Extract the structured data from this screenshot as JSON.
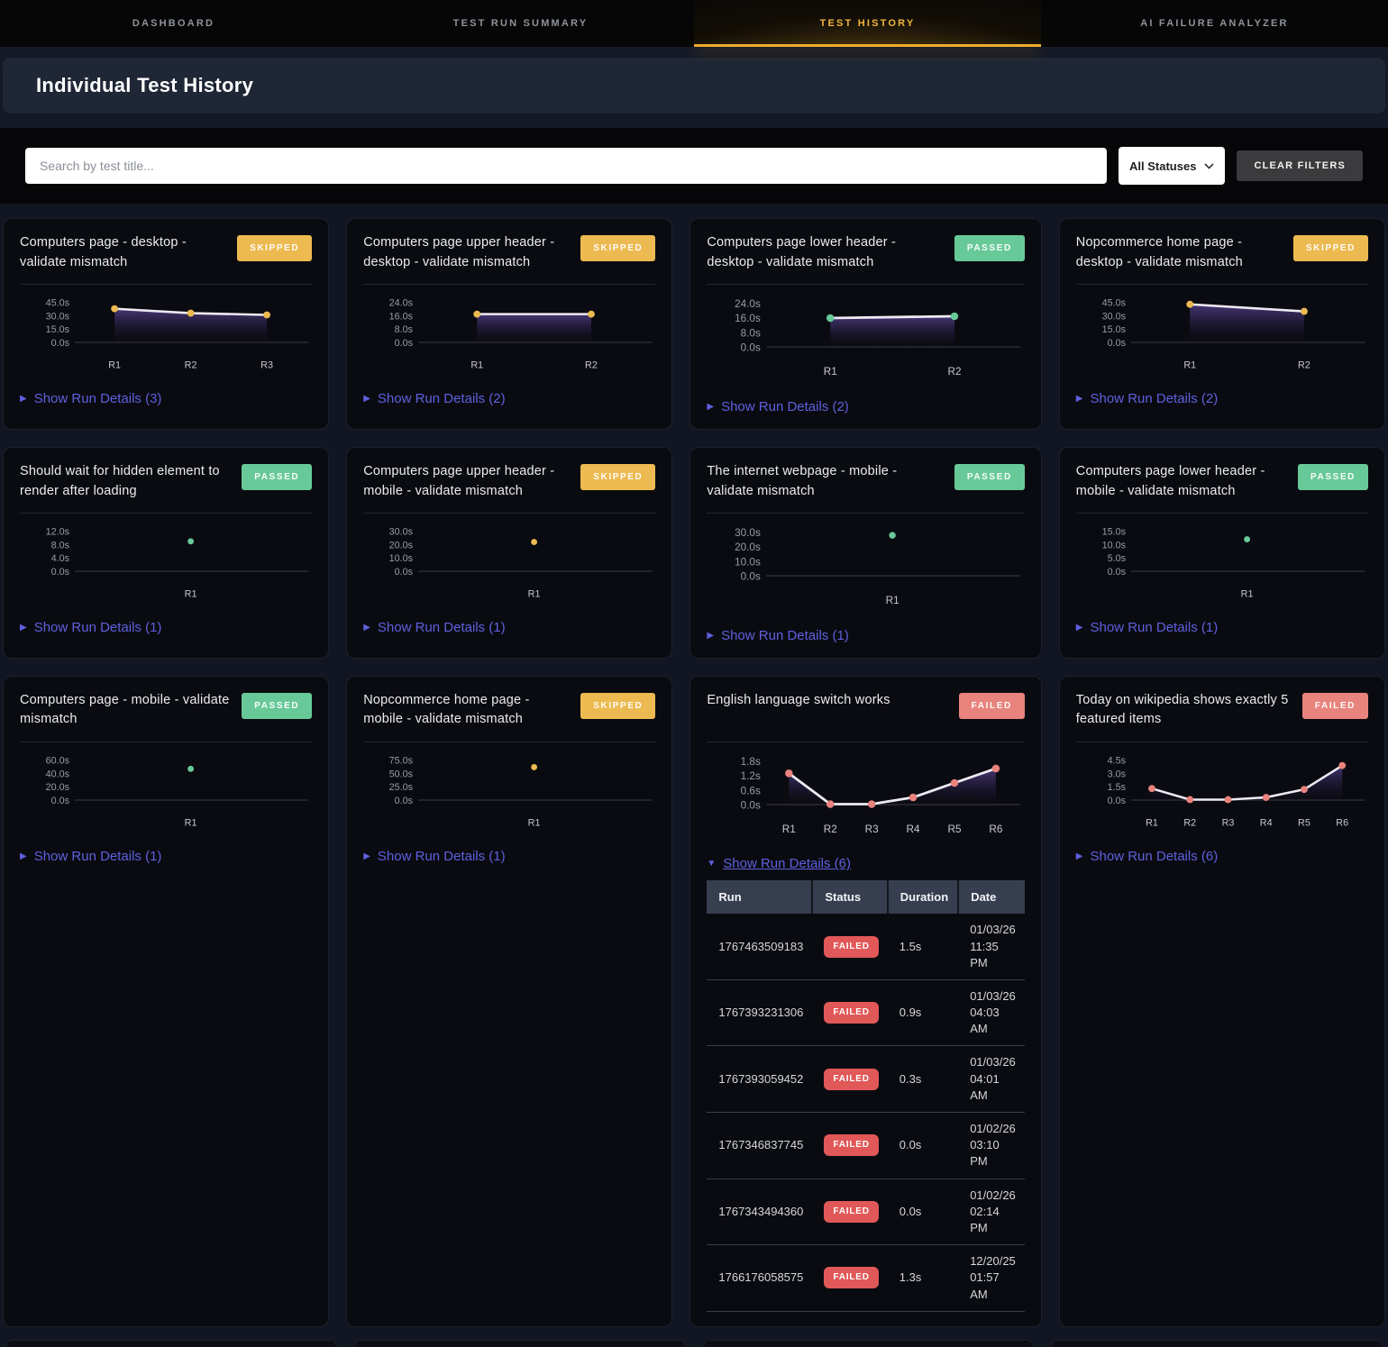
{
  "nav": {
    "tabs": [
      {
        "label": "DASHBOARD",
        "active": false
      },
      {
        "label": "TEST RUN SUMMARY",
        "active": false
      },
      {
        "label": "TEST HISTORY",
        "active": true
      },
      {
        "label": "AI FAILURE ANALYZER",
        "active": false
      }
    ]
  },
  "header": {
    "title": "Individual Test History"
  },
  "filters": {
    "search_placeholder": "Search by test title...",
    "status_select_value": "All Statuses",
    "clear_button_label": "CLEAR FILTERS"
  },
  "colors": {
    "active_tab": "#f2b63d",
    "status": {
      "SKIPPED": "#ecba50",
      "PASSED": "#68c998",
      "FAILED": "#e8837d"
    },
    "table_failed_badge": "#e15858",
    "details_link": "#5f60df",
    "chart_line": "#edeaf3",
    "chart_area_top": "#4b3a7d"
  },
  "cards": [
    {
      "title": "Computers page - desktop - validate mismatch",
      "status": "SKIPPED",
      "details_label": "Show Run Details (3)",
      "expanded": false,
      "chart_data": {
        "type": "line",
        "x": [
          "R1",
          "R2",
          "R3"
        ],
        "values": [
          38,
          33,
          31
        ],
        "y_ticks": [
          "45.0s",
          "30.0s",
          "15.0s",
          "0.0s"
        ],
        "y_max": 45
      }
    },
    {
      "title": "Computers page upper header - desktop - validate mismatch",
      "status": "SKIPPED",
      "details_label": "Show Run Details (2)",
      "expanded": false,
      "chart_data": {
        "type": "line",
        "x": [
          "R1",
          "R2"
        ],
        "values": [
          17,
          17
        ],
        "y_ticks": [
          "24.0s",
          "16.0s",
          "8.0s",
          "0.0s"
        ],
        "y_max": 24
      }
    },
    {
      "title": "Computers page lower header - desktop - validate mismatch",
      "status": "PASSED",
      "details_label": "Show Run Details (2)",
      "expanded": false,
      "chart_data": {
        "type": "line",
        "x": [
          "R1",
          "R2"
        ],
        "values": [
          16,
          17
        ],
        "y_ticks": [
          "24.0s",
          "16.0s",
          "8.0s",
          "0.0s"
        ],
        "y_max": 24
      }
    },
    {
      "title": "Nopcommerce home page - desktop - validate mismatch",
      "status": "SKIPPED",
      "details_label": "Show Run Details (2)",
      "expanded": false,
      "chart_data": {
        "type": "line",
        "x": [
          "R1",
          "R2"
        ],
        "values": [
          43,
          35
        ],
        "y_ticks": [
          "45.0s",
          "30.0s",
          "15.0s",
          "0.0s"
        ],
        "y_max": 45
      }
    },
    {
      "title": "Should wait for hidden element to render after loading",
      "status": "PASSED",
      "details_label": "Show Run Details (1)",
      "expanded": false,
      "chart_data": {
        "type": "line",
        "x": [
          "R1"
        ],
        "values": [
          9
        ],
        "y_ticks": [
          "12.0s",
          "8.0s",
          "4.0s",
          "0.0s"
        ],
        "y_max": 12
      }
    },
    {
      "title": "Computers page upper header - mobile - validate mismatch",
      "status": "SKIPPED",
      "details_label": "Show Run Details (1)",
      "expanded": false,
      "chart_data": {
        "type": "line",
        "x": [
          "R1"
        ],
        "values": [
          22
        ],
        "y_ticks": [
          "30.0s",
          "20.0s",
          "10.0s",
          "0.0s"
        ],
        "y_max": 30
      }
    },
    {
      "title": "The internet webpage - mobile - validate mismatch",
      "status": "PASSED",
      "details_label": "Show Run Details (1)",
      "expanded": false,
      "chart_data": {
        "type": "line",
        "x": [
          "R1"
        ],
        "values": [
          28
        ],
        "y_ticks": [
          "30.0s",
          "20.0s",
          "10.0s",
          "0.0s"
        ],
        "y_max": 30
      }
    },
    {
      "title": "Computers page lower header - mobile - validate mismatch",
      "status": "PASSED",
      "details_label": "Show Run Details (1)",
      "expanded": false,
      "chart_data": {
        "type": "line",
        "x": [
          "R1"
        ],
        "values": [
          12
        ],
        "y_ticks": [
          "15.0s",
          "10.0s",
          "5.0s",
          "0.0s"
        ],
        "y_max": 15
      }
    },
    {
      "title": "Computers page - mobile - validate mismatch",
      "status": "PASSED",
      "details_label": "Show Run Details (1)",
      "expanded": false,
      "chart_data": {
        "type": "line",
        "x": [
          "R1"
        ],
        "values": [
          47
        ],
        "y_ticks": [
          "60.0s",
          "40.0s",
          "20.0s",
          "0.0s"
        ],
        "y_max": 60
      }
    },
    {
      "title": "Nopcommerce home page - mobile - validate mismatch",
      "status": "SKIPPED",
      "details_label": "Show Run Details (1)",
      "expanded": false,
      "chart_data": {
        "type": "line",
        "x": [
          "R1"
        ],
        "values": [
          62
        ],
        "y_ticks": [
          "75.0s",
          "50.0s",
          "25.0s",
          "0.0s"
        ],
        "y_max": 75
      }
    },
    {
      "title": "English language switch works",
      "status": "FAILED",
      "details_label": "Show Run Details (6)",
      "expanded": true,
      "chart_data": {
        "type": "line",
        "x": [
          "R1",
          "R2",
          "R3",
          "R4",
          "R5",
          "R6"
        ],
        "values": [
          1.3,
          0.02,
          0.02,
          0.3,
          0.9,
          1.5
        ],
        "y_ticks": [
          "1.8s",
          "1.2s",
          "0.6s",
          "0.0s"
        ],
        "y_max": 1.8
      },
      "runs_table": {
        "headers": [
          "Run",
          "Status",
          "Duration",
          "Date"
        ],
        "rows": [
          [
            "1767463509183",
            "FAILED",
            "1.5s",
            "01/03/26 11:35 PM"
          ],
          [
            "1767393231306",
            "FAILED",
            "0.9s",
            "01/03/26 04:03 AM"
          ],
          [
            "1767393059452",
            "FAILED",
            "0.3s",
            "01/03/26 04:01 AM"
          ],
          [
            "1767346837745",
            "FAILED",
            "0.0s",
            "01/02/26 03:10 PM"
          ],
          [
            "1767343494360",
            "FAILED",
            "0.0s",
            "01/02/26 02:14 PM"
          ],
          [
            "1766176058575",
            "FAILED",
            "1.3s",
            "12/20/25 01:57 AM"
          ]
        ]
      }
    },
    {
      "title": "Today on wikipedia shows exactly 5 featured items",
      "status": "FAILED",
      "details_label": "Show Run Details (6)",
      "expanded": false,
      "chart_data": {
        "type": "line",
        "x": [
          "R1",
          "R2",
          "R3",
          "R4",
          "R5",
          "R6"
        ],
        "values": [
          1.3,
          0.05,
          0.05,
          0.3,
          1.2,
          3.9
        ],
        "y_ticks": [
          "4.5s",
          "3.0s",
          "1.5s",
          "0.0s"
        ],
        "y_max": 4.5
      }
    }
  ]
}
